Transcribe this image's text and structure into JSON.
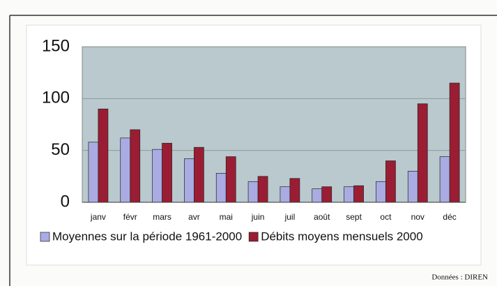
{
  "chart_data": {
    "type": "bar",
    "categories": [
      "janv",
      "févr",
      "mars",
      "avr",
      "mai",
      "juin",
      "juil",
      "août",
      "sept",
      "oct",
      "nov",
      "déc"
    ],
    "series": [
      {
        "name": "Moyennes sur la période 1961-2000",
        "color": "#a9abe2",
        "values": [
          58,
          62,
          51,
          42,
          28,
          20,
          15,
          13,
          15,
          20,
          30,
          44
        ]
      },
      {
        "name": "Débits moyens mensuels 2000",
        "color": "#9b1d33",
        "values": [
          90,
          70,
          57,
          53,
          44,
          25,
          23,
          15,
          16,
          40,
          95,
          115
        ]
      }
    ],
    "ylim": [
      0,
      150
    ],
    "yticks": [
      0,
      50,
      100,
      150
    ],
    "grid": true,
    "legend": "bottom",
    "source": "Données : DIREN"
  }
}
